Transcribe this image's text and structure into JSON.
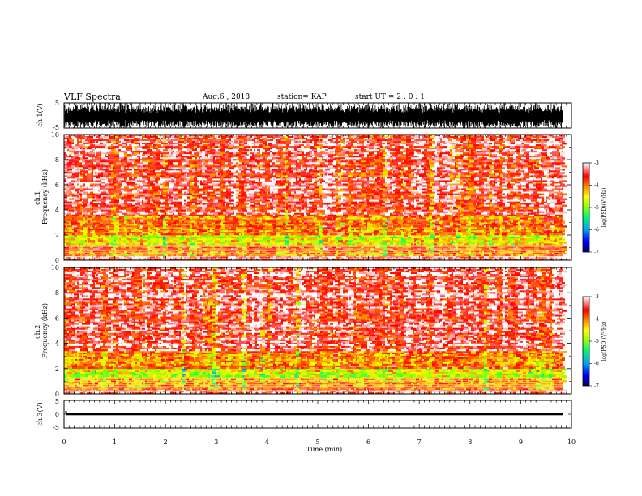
{
  "header": {
    "title": "VLF Spectra",
    "date": "Aug.6  , 2018",
    "station": "station= KAP",
    "start_ut": "start  UT  =   2  : 0  : 1"
  },
  "chart_data": [
    {
      "type": "line",
      "panel": "ch1-waveform",
      "ylabel": "ch.1(V)",
      "ylim": [
        -5,
        5
      ],
      "yticks": [
        "5",
        "-5"
      ],
      "xlim": [
        0,
        10
      ],
      "data_end_min": 9.83,
      "description_level": "dense black waveform spanning roughly -5 V to +5 V"
    },
    {
      "type": "heatmap",
      "panel": "ch1-spectrogram",
      "ylabel": "ch.1\nFrequency  (kHz)",
      "ylim": [
        0,
        10
      ],
      "yticks": [
        "0",
        "2",
        "4",
        "6",
        "8",
        "10"
      ],
      "xlim": [
        0,
        10
      ],
      "data_end_min": 9.83,
      "colorbar": {
        "label": "log(PSD)(V²/Hz)",
        "ticks": [
          "-3",
          "-4",
          "-5",
          "-6",
          "-7"
        ],
        "range": [
          -7,
          -3
        ]
      },
      "bands": [
        {
          "from_khz": 0.0,
          "to_khz": 0.35,
          "level": -3.3
        },
        {
          "from_khz": 0.35,
          "to_khz": 1.2,
          "level": -4.0
        },
        {
          "from_khz": 1.2,
          "to_khz": 2.0,
          "level": -4.6
        },
        {
          "from_khz": 2.0,
          "to_khz": 3.5,
          "level": -3.9
        },
        {
          "from_khz": 3.5,
          "to_khz": 10.0,
          "level": -3.4
        }
      ]
    },
    {
      "type": "heatmap",
      "panel": "ch2-spectrogram",
      "ylabel": "ch.2\nFrequency  (kHz)",
      "ylim": [
        0,
        10
      ],
      "yticks": [
        "0",
        "2",
        "4",
        "6",
        "8",
        "10"
      ],
      "xlim": [
        0,
        10
      ],
      "data_end_min": 9.83,
      "colorbar": {
        "label": "log(PSD)(V²/Hz)",
        "ticks": [
          "-3",
          "-4",
          "-5",
          "-6",
          "-7"
        ],
        "range": [
          -7,
          -3
        ]
      },
      "bands": [
        {
          "from_khz": 0.0,
          "to_khz": 0.35,
          "level": -3.3
        },
        {
          "from_khz": 0.35,
          "to_khz": 1.2,
          "level": -4.1
        },
        {
          "from_khz": 1.2,
          "to_khz": 2.0,
          "level": -4.7
        },
        {
          "from_khz": 2.0,
          "to_khz": 3.4,
          "level": -3.9
        },
        {
          "from_khz": 3.4,
          "to_khz": 10.0,
          "level": -3.3
        }
      ]
    },
    {
      "type": "line",
      "panel": "ch3-waveform",
      "ylabel": "ch.3(V)",
      "ylim": [
        -5,
        5
      ],
      "yticks": [
        "5",
        "0",
        "-5"
      ],
      "xlim": [
        0,
        10
      ],
      "data_end_min": 9.83,
      "constant_level_v": 0.0,
      "xlabel": "Time  (min)",
      "xticks": [
        "0",
        "1",
        "2",
        "3",
        "4",
        "5",
        "6",
        "7",
        "8",
        "9",
        "10"
      ]
    }
  ],
  "colors": {
    "waveform": "#000000",
    "colormap": [
      "#000080",
      "#0000ff",
      "#00a0ff",
      "#00ff80",
      "#80ff00",
      "#ffff00",
      "#ff8000",
      "#ff0000",
      "#ffffff"
    ]
  }
}
